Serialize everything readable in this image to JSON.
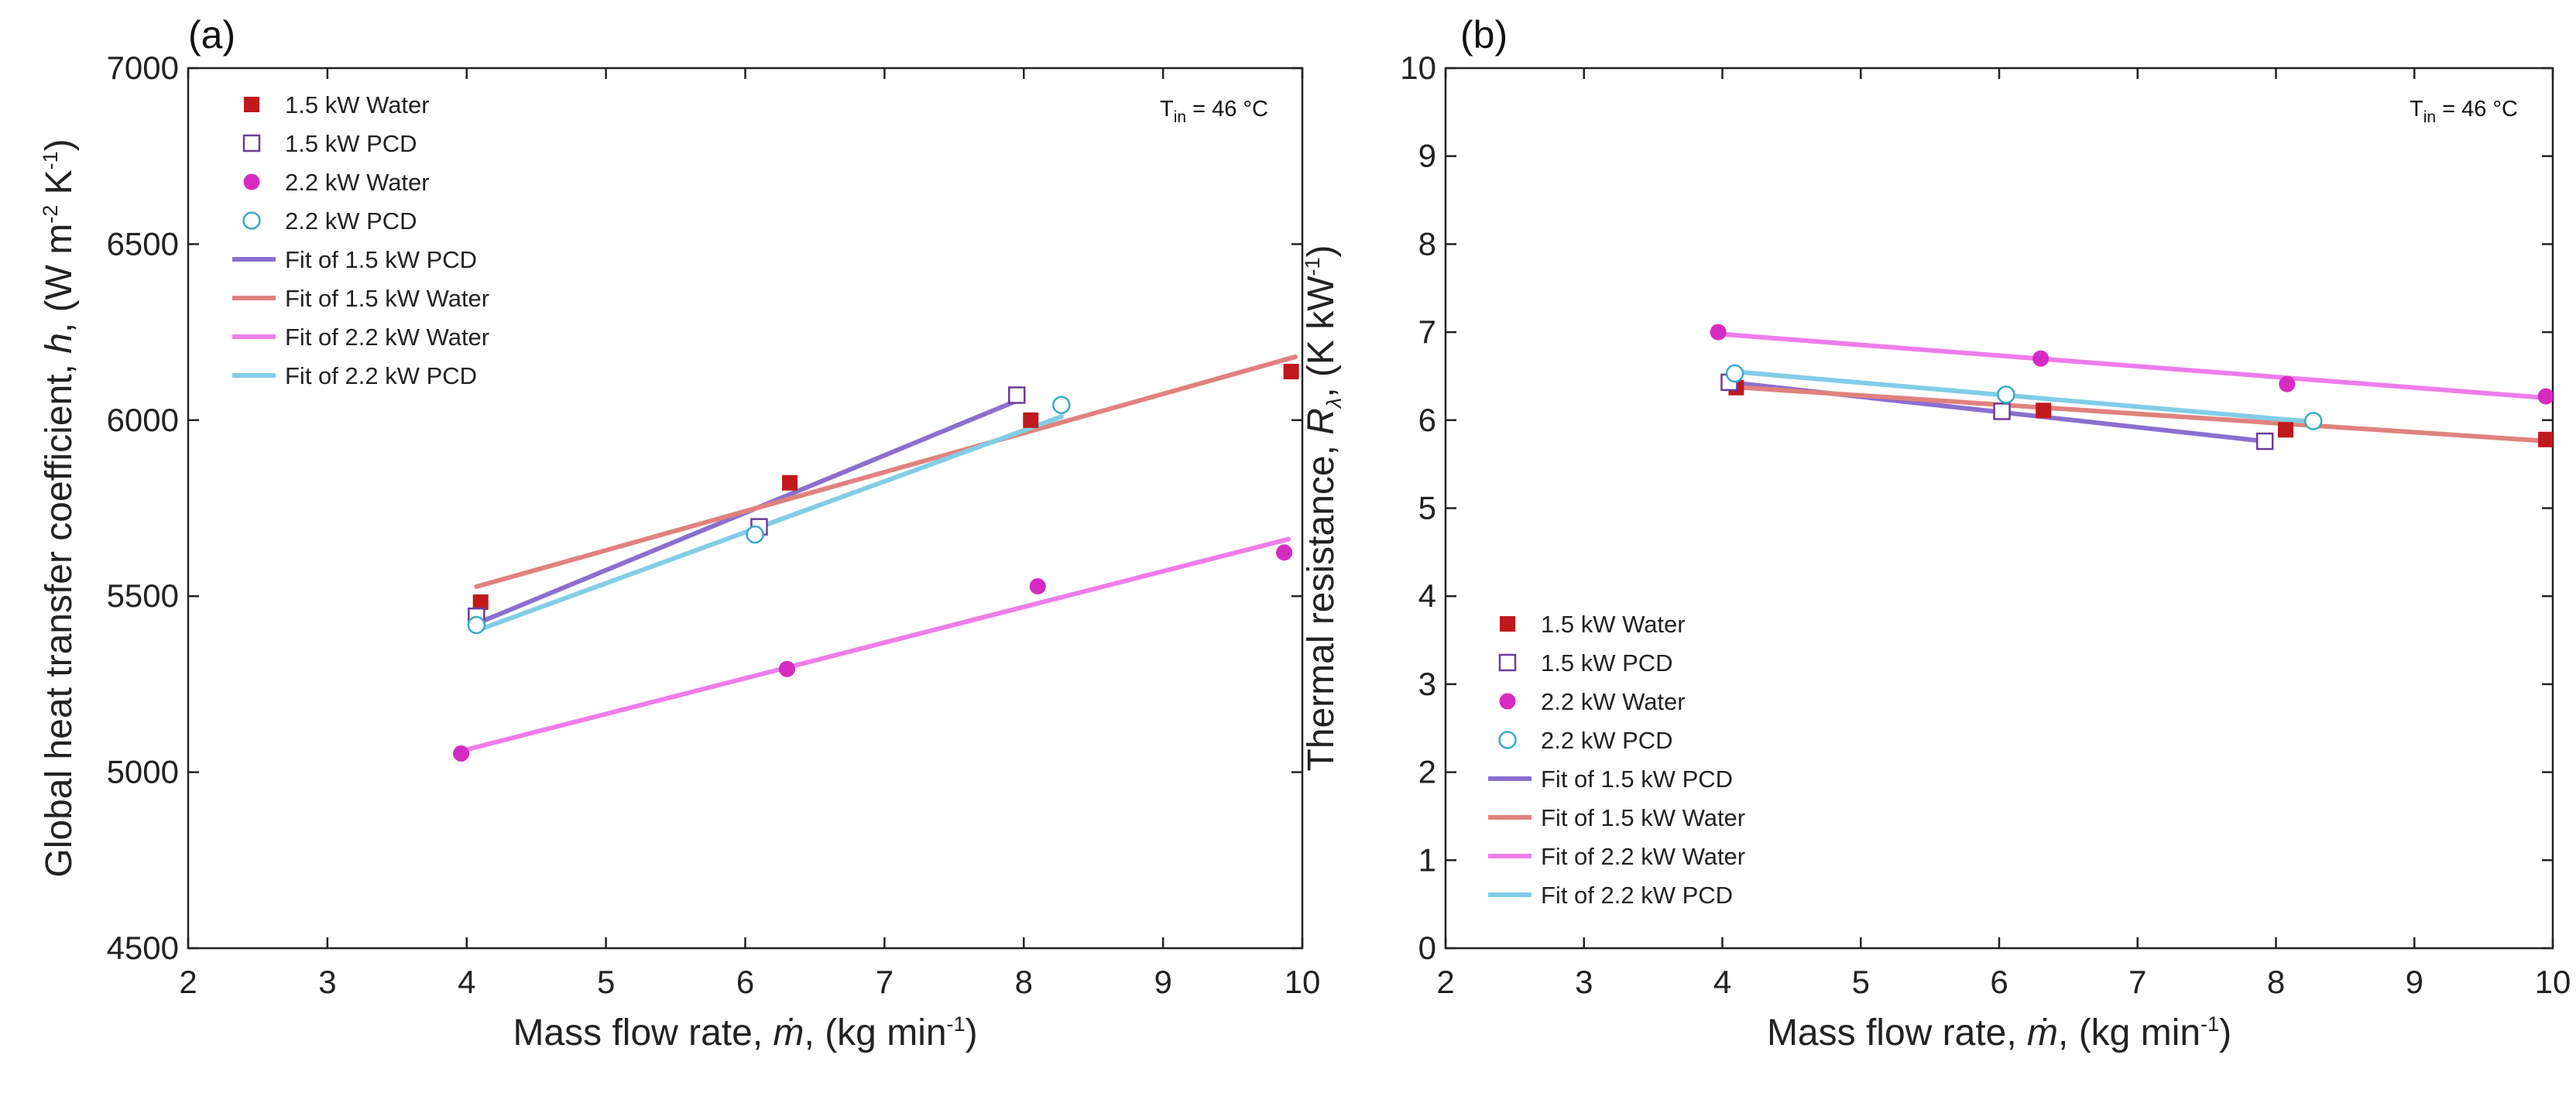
{
  "chart_data": [
    {
      "type": "scatter",
      "panel_label": "(a)",
      "annotation": {
        "text": "T",
        "subscript": "in",
        "suffix": " = 46 °C"
      },
      "xlabel": {
        "text": "Mass flow rate, ",
        "symbol": "ṁ",
        "unit_pre": ", (kg min",
        "unit_sup": "-1",
        "unit_post": ")"
      },
      "ylabel": {
        "text": "Global heat transfer coefficient, ",
        "symbol": "h",
        "unit_pre": ", (W m",
        "sup1": "-2",
        "mid": " K",
        "sup2": "-1",
        "unit_post": ")"
      },
      "xlim": [
        2,
        10
      ],
      "ylim": [
        4500,
        7000
      ],
      "xticks": [
        "2",
        "3",
        "4",
        "5",
        "6",
        "7",
        "8",
        "9",
        "10"
      ],
      "yticks": [
        "4500",
        "5000",
        "5500",
        "6000",
        "6500",
        "7000"
      ],
      "grid": false,
      "legend_position": "top-left",
      "series": [
        {
          "name": "1.5 kW Water",
          "marker": "square-filled",
          "color": "#c0191d",
          "x": [
            4.1,
            6.32,
            8.05,
            9.92
          ],
          "y": [
            5483,
            5822,
            6000,
            6138
          ]
        },
        {
          "name": "1.5 kW PCD",
          "marker": "square-open",
          "color": "#6a3d9a",
          "x": [
            4.07,
            6.1,
            7.95
          ],
          "y": [
            5443,
            5697,
            6071
          ]
        },
        {
          "name": "2.2 kW Water",
          "marker": "circle-filled",
          "color": "#d62bc2",
          "x": [
            3.96,
            6.3,
            8.1,
            9.87
          ],
          "y": [
            5053,
            5293,
            5528,
            5624
          ]
        },
        {
          "name": "2.2 kW PCD",
          "marker": "circle-open",
          "color": "#3aa9c7",
          "x": [
            4.07,
            6.07,
            8.27
          ],
          "y": [
            5418,
            5675,
            6043
          ]
        }
      ],
      "fits": [
        {
          "name": "Fit of 1.5 kW PCD",
          "color": "#8a6fcf",
          "x": [
            4.07,
            7.98
          ],
          "y": [
            5422,
            6060
          ]
        },
        {
          "name": "Fit of 1.5 kW Water",
          "color": "#e0827e",
          "x": [
            4.07,
            9.95
          ],
          "y": [
            5527,
            6180
          ]
        },
        {
          "name": "Fit of 2.2 kW Water",
          "color": "#ee7dea",
          "x": [
            3.96,
            9.9
          ],
          "y": [
            5060,
            5662
          ]
        },
        {
          "name": "Fit of 2.2 kW PCD",
          "color": "#82cde6",
          "x": [
            4.07,
            8.27
          ],
          "y": [
            5402,
            6010
          ]
        }
      ]
    },
    {
      "type": "scatter",
      "panel_label": "(b)",
      "annotation": {
        "text": "T",
        "subscript": "in",
        "suffix": " = 46 °C"
      },
      "xlabel": {
        "text": "Mass flow rate, ",
        "symbol": "ṁ",
        "unit_pre": ", (kg min",
        "unit_sup": "-1",
        "unit_post": ")"
      },
      "ylabel": {
        "text": "Thermal resistance, ",
        "symbol": "R",
        "sub": "λ",
        "unit_pre": ", (K kW",
        "sup1": "-1",
        "unit_post": ")"
      },
      "xlim": [
        2,
        10
      ],
      "ylim": [
        0,
        10
      ],
      "xticks": [
        "2",
        "3",
        "4",
        "5",
        "6",
        "7",
        "8",
        "9",
        "10"
      ],
      "yticks": [
        "0",
        "1",
        "2",
        "3",
        "4",
        "5",
        "6",
        "7",
        "8",
        "9",
        "10"
      ],
      "grid": false,
      "legend_position": "bottom-left",
      "series": [
        {
          "name": "1.5 kW Water",
          "marker": "square-filled",
          "color": "#c0191d",
          "x": [
            4.1,
            6.32,
            8.07,
            9.95
          ],
          "y": [
            6.37,
            6.11,
            5.89,
            5.78
          ]
        },
        {
          "name": "1.5 kW PCD",
          "marker": "square-open",
          "color": "#6a3d9a",
          "x": [
            4.05,
            6.02,
            7.92
          ],
          "y": [
            6.43,
            6.1,
            5.76
          ]
        },
        {
          "name": "2.2 kW Water",
          "marker": "circle-filled",
          "color": "#d62bc2",
          "x": [
            3.97,
            6.3,
            8.08,
            9.95
          ],
          "y": [
            7.0,
            6.7,
            6.41,
            6.27
          ]
        },
        {
          "name": "2.2 kW PCD",
          "marker": "circle-open",
          "color": "#3aa9c7",
          "x": [
            4.09,
            6.05,
            8.27
          ],
          "y": [
            6.53,
            6.29,
            5.99
          ]
        }
      ],
      "fits": [
        {
          "name": "Fit of 1.5 kW PCD",
          "color": "#8a6fcf",
          "x": [
            4.05,
            7.92
          ],
          "y": [
            6.43,
            5.76
          ]
        },
        {
          "name": "Fit of 1.5 kW Water",
          "color": "#e0827e",
          "x": [
            4.05,
            9.98
          ],
          "y": [
            6.38,
            5.76
          ]
        },
        {
          "name": "Fit of 2.2 kW Water",
          "color": "#ee7dea",
          "x": [
            3.97,
            9.98
          ],
          "y": [
            6.98,
            6.25
          ]
        },
        {
          "name": "Fit of 2.2 kW PCD",
          "color": "#82cde6",
          "x": [
            4.09,
            8.27
          ],
          "y": [
            6.55,
            5.98
          ]
        }
      ]
    }
  ]
}
